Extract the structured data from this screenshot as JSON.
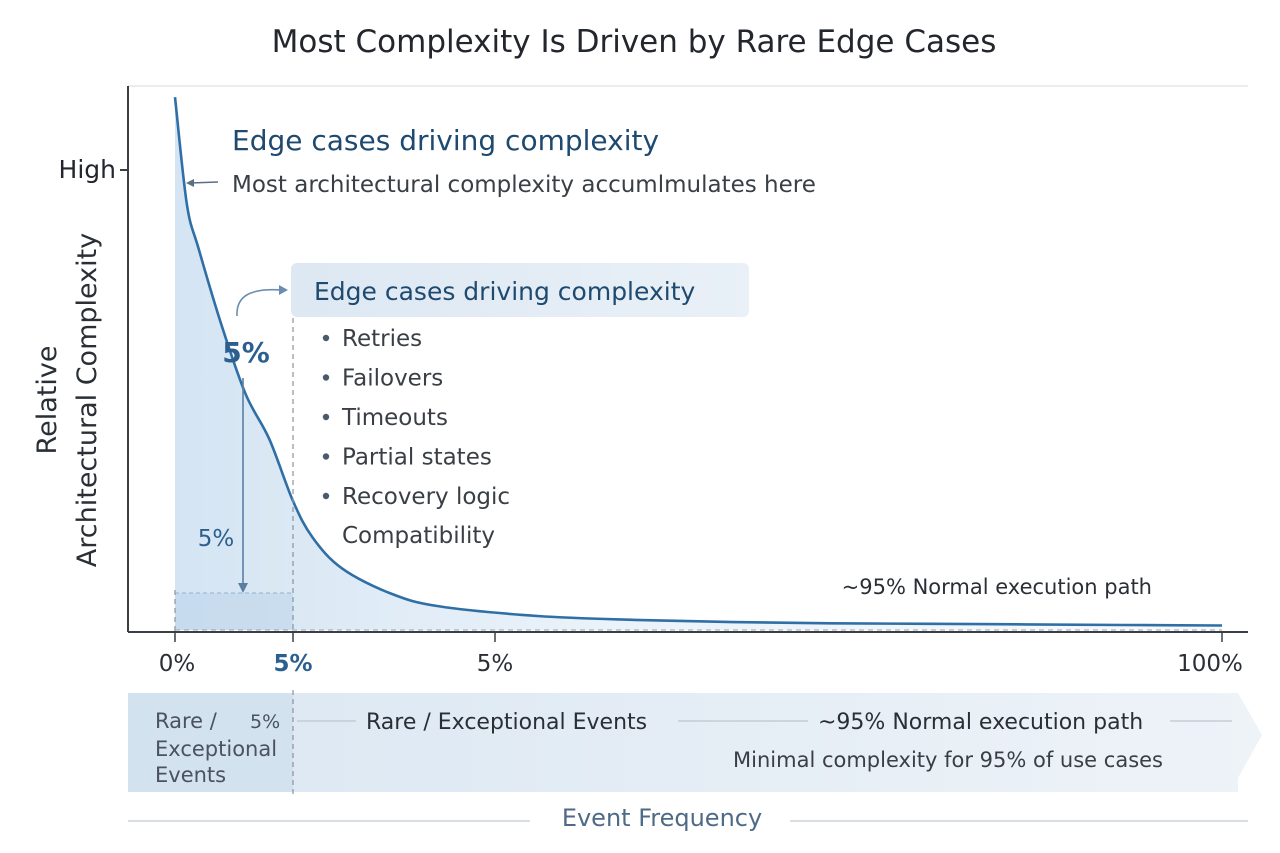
{
  "chart_data": {
    "type": "area",
    "title": "Most Complexity Is Driven by Rare Edge Cases",
    "xlabel": "Event Frequency",
    "ylabel_line1": "Relative",
    "ylabel_line2": "Architectural Complexity",
    "y_tick_high": "High",
    "x_ticks": [
      "0%",
      "5%",
      "5%",
      "100%"
    ],
    "xlim": [
      0,
      100
    ],
    "curve": {
      "x": [
        0,
        0.5,
        1,
        2,
        3,
        4,
        5,
        7,
        10,
        15,
        20,
        30,
        40,
        50,
        60,
        70,
        80,
        90,
        100
      ],
      "y": [
        0.95,
        0.76,
        0.68,
        0.54,
        0.42,
        0.34,
        0.23,
        0.165,
        0.11,
        0.065,
        0.042,
        0.025,
        0.018,
        0.014,
        0.012,
        0.011,
        0.01,
        0.009,
        0.008
      ]
    },
    "highlight_region": {
      "x_start": 0,
      "x_end": 5
    },
    "series_color": "#2f6fa6",
    "region_fill": "#dce9f5",
    "annotations": {
      "edge_title": "Edge cases driving complexity",
      "edge_subtitle": "Most architectural complexity accumlmulates here",
      "box_title": "Edge cases driving complexity",
      "box_items": [
        "Retries",
        "Failovers",
        "Timeouts",
        "Partial states",
        "Recovery logic"
      ],
      "box_extra": "Compatibility",
      "pct_big": "5%",
      "pct_small": "5%",
      "normal_path": "~95% Normal execution path"
    },
    "band": {
      "left_line1": "Rare /",
      "left_line2": "Exceptional",
      "left_line3": "Events",
      "left_pct": "5%",
      "middle": "Rare / Exceptional Events",
      "right": "~95% Normal execution path",
      "right_sub": "Minimal complexity for 95% of use cases"
    }
  }
}
